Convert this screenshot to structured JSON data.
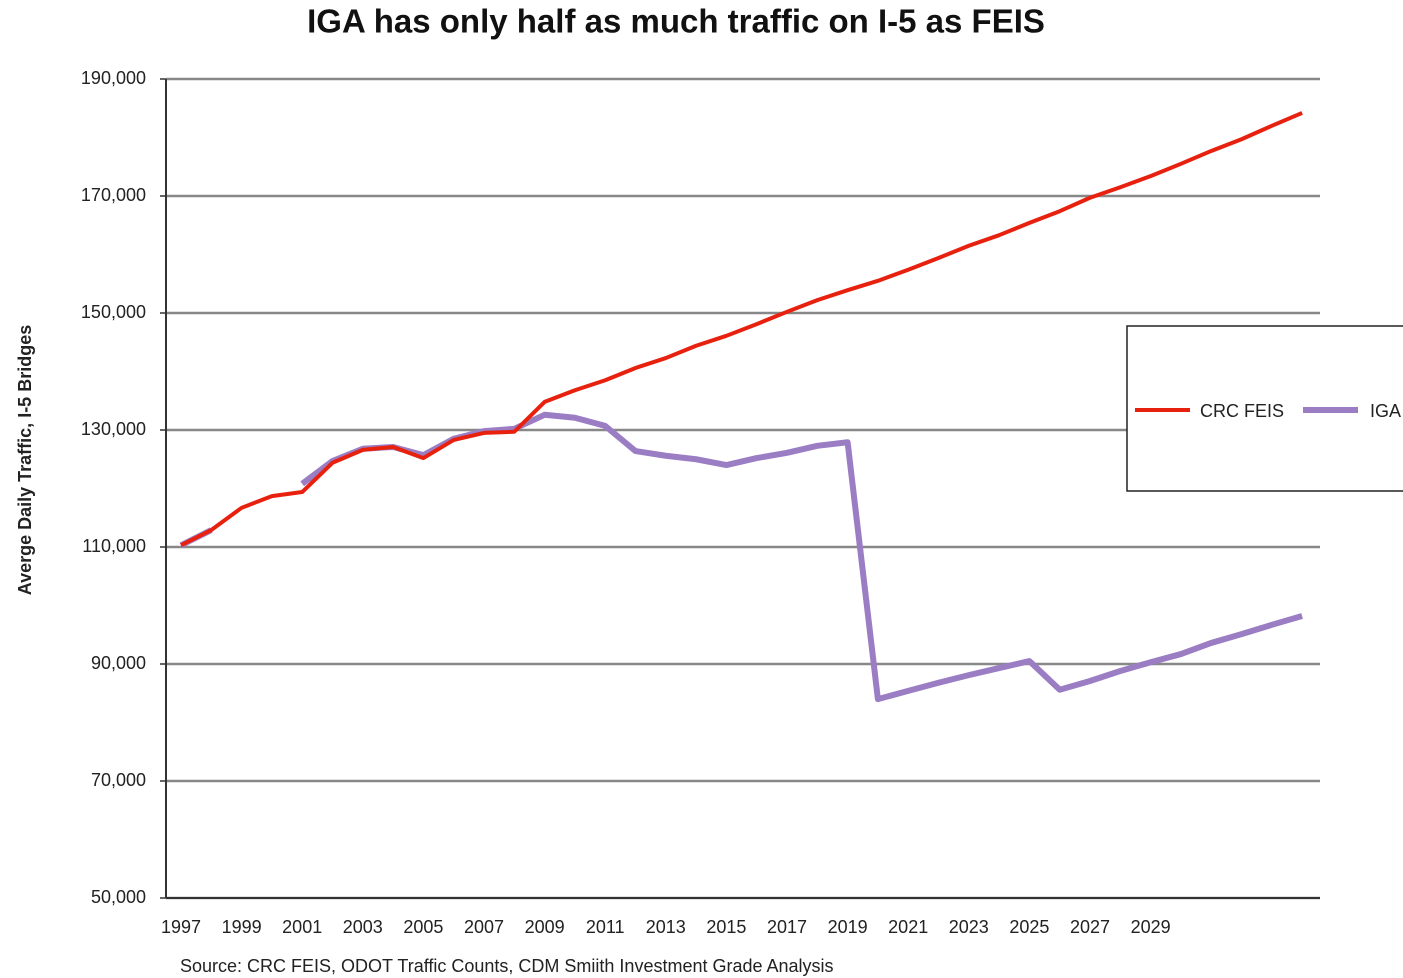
{
  "chart_data": {
    "type": "line",
    "title": "IGA has only half as much traffic on I-5 as FEIS",
    "y_label": "Averge Daily Traffic, I-5 Bridges",
    "source": "Source:  CRC FEIS, ODOT Traffic Counts, CDM Smiith Investment Grade Analysis",
    "categories": [
      "1997",
      null,
      "1999",
      null,
      "2001",
      null,
      "2003",
      null,
      "2005",
      null,
      "2007",
      null,
      "2009",
      null,
      "2011",
      null,
      "2013",
      null,
      "2015",
      null,
      "2017",
      null,
      "2019",
      null,
      "2021",
      null,
      "2023",
      null,
      "2025",
      null,
      "2027",
      null,
      "2029",
      null,
      null,
      null,
      null,
      null
    ],
    "series": [
      {
        "name": "CRC FEIS",
        "color": "#e8210f",
        "values": [
          110300,
          112900,
          116700,
          118700,
          119400,
          124400,
          126600,
          127100,
          125200,
          128300,
          129500,
          129700,
          134800,
          136800,
          138500,
          140600,
          142300,
          144400,
          146100,
          148100,
          150200,
          152200,
          153900,
          155500,
          157400,
          159400,
          161500,
          163300,
          165400,
          167400,
          169700,
          171500,
          173400,
          175500,
          177700,
          179700,
          182000,
          184200
        ]
      },
      {
        "name": "IGA",
        "color": "#9b7dc4",
        "values": [
          110300,
          112900,
          null,
          null,
          120800,
          124700,
          126800,
          127100,
          125700,
          128500,
          129800,
          130200,
          132600,
          132100,
          130700,
          126400,
          125600,
          125000,
          124000,
          125200,
          126100,
          127300,
          127900,
          84000,
          85400,
          86800,
          88100,
          89300,
          90500,
          85600,
          87100,
          88800,
          90300,
          91700,
          93600,
          95100,
          96700,
          98200
        ]
      }
    ],
    "ylim": [
      50000,
      190000
    ],
    "yticks": [
      {
        "value": 50000,
        "label": "50,000"
      },
      {
        "value": 70000,
        "label": "70,000"
      },
      {
        "value": 90000,
        "label": "90,000"
      },
      {
        "value": 110000,
        "label": "110,000"
      },
      {
        "value": 130000,
        "label": "130,000"
      },
      {
        "value": 150000,
        "label": "150,000"
      },
      {
        "value": 170000,
        "label": "170,000"
      },
      {
        "value": 190000,
        "label": "190,000"
      }
    ],
    "grid": true,
    "legend": "right"
  }
}
